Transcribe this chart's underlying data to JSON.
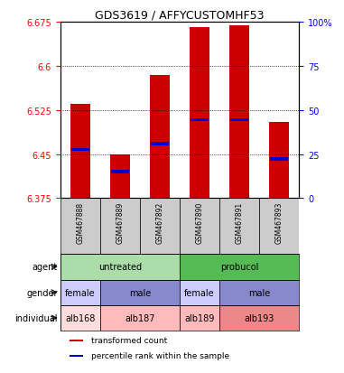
{
  "title": "GDS3619 / AFFYCUSTOMHF53",
  "samples": [
    "GSM467888",
    "GSM467889",
    "GSM467892",
    "GSM467890",
    "GSM467891",
    "GSM467893"
  ],
  "bar_values": [
    6.535,
    6.45,
    6.585,
    6.665,
    6.668,
    6.505
  ],
  "bar_base": 6.375,
  "percentile_values": [
    6.458,
    6.42,
    6.468,
    6.508,
    6.508,
    6.442
  ],
  "ylim": [
    6.375,
    6.675
  ],
  "yticks_left": [
    6.375,
    6.45,
    6.525,
    6.6,
    6.675
  ],
  "yticks_right": [
    0,
    25,
    50,
    75,
    100
  ],
  "bar_color": "#cc0000",
  "percentile_color": "#0000cc",
  "bar_width": 0.5,
  "agent_groups": [
    {
      "label": "untreated",
      "start": 0,
      "end": 3,
      "color": "#aaddaa"
    },
    {
      "label": "probucol",
      "start": 3,
      "end": 6,
      "color": "#55bb55"
    }
  ],
  "gender_groups": [
    {
      "label": "female",
      "start": 0,
      "end": 1,
      "color": "#ccccff"
    },
    {
      "label": "male",
      "start": 1,
      "end": 3,
      "color": "#8888cc"
    },
    {
      "label": "female",
      "start": 3,
      "end": 4,
      "color": "#ccccff"
    },
    {
      "label": "male",
      "start": 4,
      "end": 6,
      "color": "#8888cc"
    }
  ],
  "individual_groups": [
    {
      "label": "alb168",
      "start": 0,
      "end": 1,
      "color": "#ffdddd"
    },
    {
      "label": "alb187",
      "start": 1,
      "end": 3,
      "color": "#ffbbbb"
    },
    {
      "label": "alb189",
      "start": 3,
      "end": 4,
      "color": "#ffbbbb"
    },
    {
      "label": "alb193",
      "start": 4,
      "end": 6,
      "color": "#ee8888"
    }
  ],
  "row_labels": [
    "agent",
    "gender",
    "individual"
  ],
  "sample_bg_color": "#cccccc",
  "legend_items": [
    {
      "color": "#cc0000",
      "label": "transformed count"
    },
    {
      "color": "#0000cc",
      "label": "percentile rank within the sample"
    }
  ]
}
